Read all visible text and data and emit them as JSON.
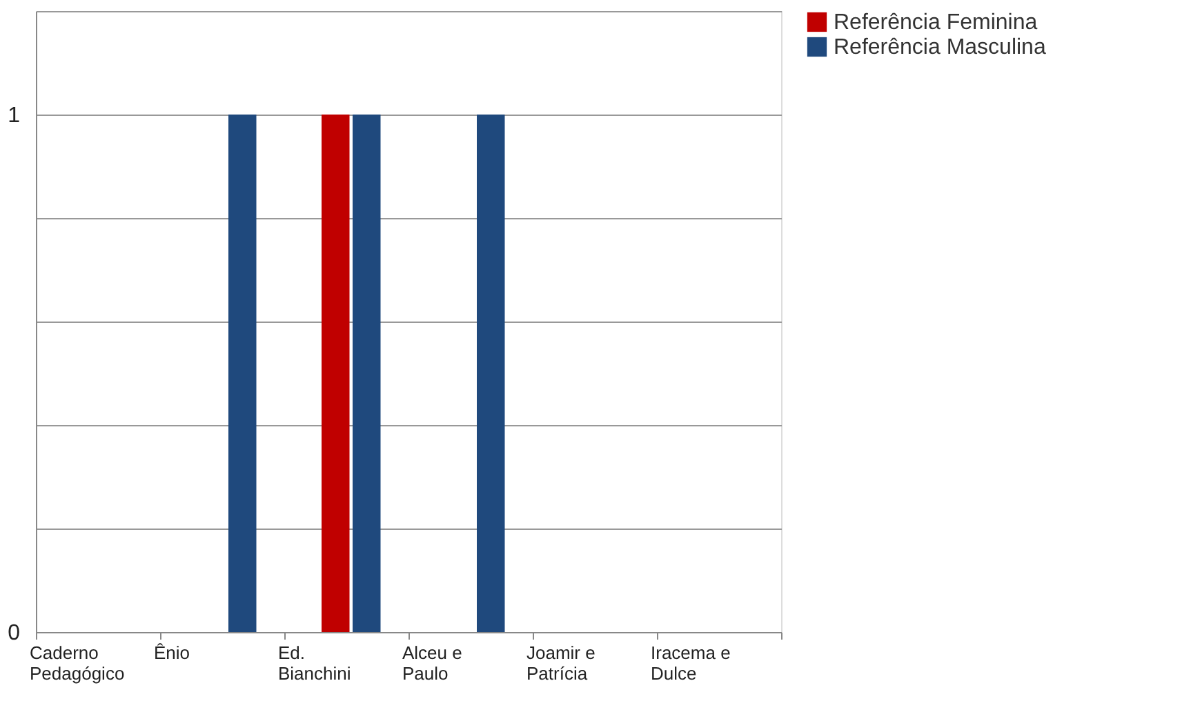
{
  "chart_data": {
    "type": "bar",
    "categories": [
      "Caderno Pedagógico",
      "Ênio",
      "Ed. Bianchini",
      "Alceu e Paulo",
      "Joamir e Patrícia",
      "Iracema e Dulce"
    ],
    "series": [
      {
        "name": "Referência Feminina",
        "color": "#c00000",
        "values": [
          0,
          0,
          1,
          0,
          0,
          0
        ]
      },
      {
        "name": "Referência Masculina",
        "color": "#1f497d",
        "values": [
          0,
          1,
          1,
          1,
          0,
          0
        ]
      }
    ],
    "ylim": [
      0,
      1.2
    ],
    "yticks": [
      0,
      {
        "value": 0.2,
        "label": null
      },
      {
        "value": 0.4,
        "label": null
      },
      {
        "value": 0.6,
        "label": null
      },
      {
        "value": 0.8,
        "label": null
      },
      1,
      {
        "value": 1.2,
        "label": null
      }
    ],
    "grid": "y",
    "legend": "right"
  }
}
